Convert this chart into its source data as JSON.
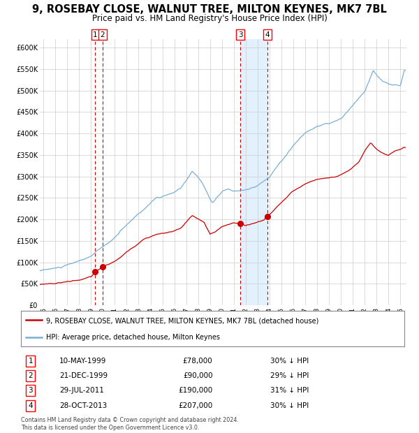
{
  "title": "9, ROSEBAY CLOSE, WALNUT TREE, MILTON KEYNES, MK7 7BL",
  "subtitle": "Price paid vs. HM Land Registry's House Price Index (HPI)",
  "title_fontsize": 10.5,
  "subtitle_fontsize": 8.5,
  "background_color": "#ffffff",
  "plot_bg_color": "#ffffff",
  "grid_color": "#cccccc",
  "hpi_color": "#7aafd4",
  "price_color": "#cc0000",
  "ylim": [
    0,
    620000
  ],
  "yticks": [
    0,
    50000,
    100000,
    150000,
    200000,
    250000,
    300000,
    350000,
    400000,
    450000,
    500000,
    550000,
    600000
  ],
  "ytick_labels": [
    "£0",
    "£50K",
    "£100K",
    "£150K",
    "£200K",
    "£250K",
    "£300K",
    "£350K",
    "£400K",
    "£450K",
    "£500K",
    "£550K",
    "£600K"
  ],
  "xlim_start": 1994.7,
  "xlim_end": 2025.5,
  "sales": [
    {
      "date": 1999.36,
      "price": 78000,
      "label": "1"
    },
    {
      "date": 1999.97,
      "price": 90000,
      "label": "2"
    },
    {
      "date": 2011.56,
      "price": 190000,
      "label": "3"
    },
    {
      "date": 2013.83,
      "price": 207000,
      "label": "4"
    }
  ],
  "vlines": [
    {
      "date": 1999.36,
      "label": "1"
    },
    {
      "date": 1999.97,
      "label": "2"
    },
    {
      "date": 2011.56,
      "label": "3"
    },
    {
      "date": 2013.83,
      "label": "4"
    }
  ],
  "shade_start": 2011.56,
  "shade_end": 2013.83,
  "shade_color": "#ddeeff",
  "legend_entries": [
    "9, ROSEBAY CLOSE, WALNUT TREE, MILTON KEYNES, MK7 7BL (detached house)",
    "HPI: Average price, detached house, Milton Keynes"
  ],
  "table_rows": [
    {
      "num": "1",
      "date": "10-MAY-1999",
      "price": "£78,000",
      "change": "30% ↓ HPI"
    },
    {
      "num": "2",
      "date": "21-DEC-1999",
      "price": "£90,000",
      "change": "29% ↓ HPI"
    },
    {
      "num": "3",
      "date": "29-JUL-2011",
      "price": "£190,000",
      "change": "31% ↓ HPI"
    },
    {
      "num": "4",
      "date": "28-OCT-2013",
      "price": "£207,000",
      "change": "30% ↓ HPI"
    }
  ],
  "footer": "Contains HM Land Registry data © Crown copyright and database right 2024.\nThis data is licensed under the Open Government Licence v3.0."
}
